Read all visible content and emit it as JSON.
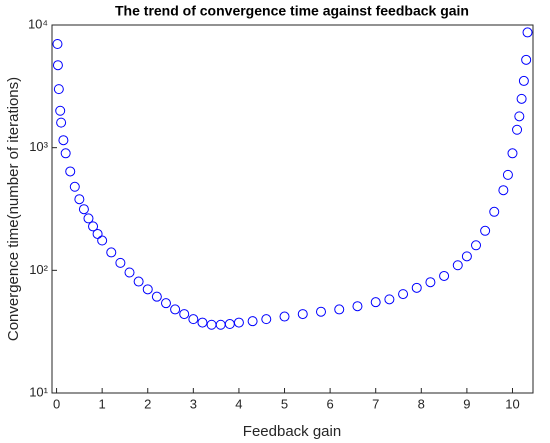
{
  "chart_data": {
    "type": "scatter",
    "title": "The trend of convergence time against feedback gain",
    "xlabel": "Feedback gain",
    "ylabel": "Convergence time(number of iterations)",
    "log_y": true,
    "marker": "circle",
    "color": "#0000ff",
    "x": [
      0.02,
      0.03,
      0.05,
      0.08,
      0.1,
      0.15,
      0.2,
      0.3,
      0.4,
      0.5,
      0.6,
      0.7,
      0.8,
      0.9,
      1.0,
      1.2,
      1.4,
      1.6,
      1.8,
      2.0,
      2.2,
      2.4,
      2.6,
      2.8,
      3.0,
      3.2,
      3.4,
      3.6,
      3.8,
      4.0,
      4.3,
      4.6,
      5.0,
      5.4,
      5.8,
      6.2,
      6.6,
      7.0,
      7.3,
      7.6,
      7.9,
      8.2,
      8.5,
      8.8,
      9.0,
      9.2,
      9.4,
      9.6,
      9.8,
      9.9,
      10.0,
      10.1,
      10.15,
      10.2,
      10.25,
      10.3,
      10.33
    ],
    "values": [
      7000,
      4700,
      3000,
      2000,
      1600,
      1150,
      900,
      640,
      480,
      380,
      315,
      265,
      228,
      198,
      175,
      140,
      115,
      96,
      81,
      70,
      61,
      54,
      48,
      44,
      40,
      37.5,
      36,
      36,
      36.5,
      37.5,
      38.5,
      40,
      42,
      44,
      46,
      48,
      51,
      55,
      58,
      64,
      72,
      80,
      90,
      110,
      130,
      160,
      210,
      300,
      450,
      600,
      900,
      1400,
      1800,
      2500,
      3500,
      5200,
      8700
    ],
    "xlim": [
      -0.1,
      10.45
    ],
    "ylim": [
      10,
      10000
    ],
    "xticks": [
      0,
      1,
      2,
      3,
      4,
      5,
      6,
      7,
      8,
      9,
      10
    ],
    "yticks": [
      {
        "value": 10,
        "label": "10¹"
      },
      {
        "value": 100,
        "label": "10²"
      },
      {
        "value": 1000,
        "label": "10³"
      },
      {
        "value": 10000,
        "label": "10⁴"
      }
    ]
  }
}
